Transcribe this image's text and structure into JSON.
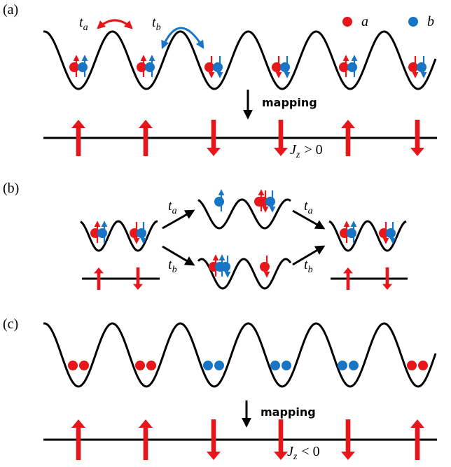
{
  "panels": [
    {
      "label": "(a)"
    },
    {
      "label": "(b)"
    },
    {
      "label": "(c)"
    }
  ],
  "legend": [
    {
      "symbol": "a"
    },
    {
      "symbol": "b"
    }
  ],
  "hopping": [
    {
      "symbol": "t",
      "subscript": "a"
    },
    {
      "symbol": "t",
      "subscript": "b"
    }
  ],
  "mapping": "mapping",
  "coupling": [
    {
      "symbol": "J",
      "subscript": "z",
      "relation": "> 0"
    },
    {
      "symbol": "J",
      "subscript": "z",
      "relation": "< 0"
    }
  ]
}
